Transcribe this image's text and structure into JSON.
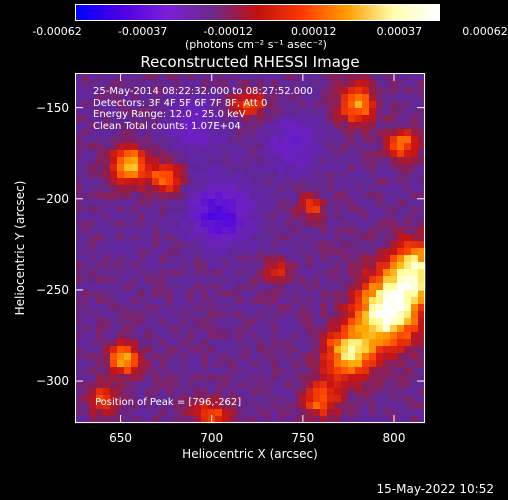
{
  "colorbar": {
    "ticks": [
      "-0.00062",
      "-0.00037",
      "-0.00012",
      "0.00012",
      "0.00037",
      "0.00062"
    ],
    "unit_label": "(photons cm⁻² s⁻¹ asec⁻²)",
    "colors": [
      "#0000ff",
      "#4d00e6",
      "#7a1fd6",
      "#6a2a8c",
      "#c01010",
      "#ff3a00",
      "#ffa000",
      "#ffffb0",
      "#ffffff"
    ]
  },
  "chart_data": {
    "type": "heatmap",
    "title": "Reconstructed RHESSI Image",
    "xlabel": "Heliocentric X (arcsec)",
    "ylabel": "Heliocentric Y (arcsec)",
    "xlim": [
      625,
      817
    ],
    "ylim": [
      -323,
      -131
    ],
    "xticks": [
      650,
      700,
      750,
      800
    ],
    "yticks": [
      -150,
      -200,
      -250,
      -300
    ],
    "peak": [
      796,
      -262
    ],
    "sources": [
      {
        "x": 796,
        "y": -262,
        "intensity": 1.0,
        "sx": 12,
        "sy": 14
      },
      {
        "x": 812,
        "y": -240,
        "intensity": 0.85,
        "sx": 10,
        "sy": 12
      },
      {
        "x": 775,
        "y": -285,
        "intensity": 0.75,
        "sx": 10,
        "sy": 10
      },
      {
        "x": 760,
        "y": -310,
        "intensity": 0.55,
        "sx": 7,
        "sy": 7
      },
      {
        "x": 655,
        "y": -182,
        "intensity": 0.8,
        "sx": 7,
        "sy": 7
      },
      {
        "x": 675,
        "y": -188,
        "intensity": 0.6,
        "sx": 6,
        "sy": 6
      },
      {
        "x": 652,
        "y": -288,
        "intensity": 0.7,
        "sx": 6,
        "sy": 6
      },
      {
        "x": 640,
        "y": -310,
        "intensity": 0.45,
        "sx": 6,
        "sy": 6
      },
      {
        "x": 780,
        "y": -148,
        "intensity": 0.65,
        "sx": 7,
        "sy": 8
      },
      {
        "x": 805,
        "y": -170,
        "intensity": 0.55,
        "sx": 6,
        "sy": 6
      },
      {
        "x": 720,
        "y": -148,
        "intensity": 0.45,
        "sx": 7,
        "sy": 5
      },
      {
        "x": 755,
        "y": -205,
        "intensity": 0.4,
        "sx": 5,
        "sy": 5
      },
      {
        "x": 735,
        "y": -240,
        "intensity": 0.35,
        "sx": 5,
        "sy": 5
      },
      {
        "x": 700,
        "y": -318,
        "intensity": 0.45,
        "sx": 8,
        "sy": 5
      },
      {
        "x": 705,
        "y": -208,
        "intensity": -0.55,
        "sx": 12,
        "sy": 12
      },
      {
        "x": 690,
        "y": -160,
        "intensity": -0.35,
        "sx": 10,
        "sy": 10
      },
      {
        "x": 745,
        "y": -170,
        "intensity": -0.35,
        "sx": 10,
        "sy": 10
      }
    ]
  },
  "overlay": {
    "time_range": "25-May-2014 08:22:32.000 to 08:27:52.000",
    "detectors": "Detectors: 3F 4F 5F 6F 7F 8F, Att 0",
    "energy": "Energy Range: 12.0 - 25.0 keV",
    "clean": "Clean    Total counts: 1.07E+04",
    "peak_text": "Position of Peak = [796,-262]"
  },
  "footer": {
    "timestamp": "15-May-2022 10:52"
  }
}
